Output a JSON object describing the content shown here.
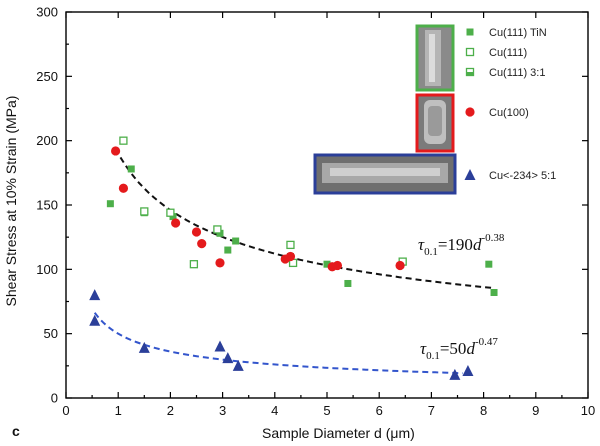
{
  "panel_label": "c",
  "chart_data": {
    "type": "scatter",
    "xlabel": "Sample Diameter d (μm)",
    "ylabel": "Shear Stress at 10% Strain (MPa)",
    "xlim": [
      0,
      10
    ],
    "ylim": [
      0,
      300
    ],
    "xticks": [
      0,
      1,
      2,
      3,
      4,
      5,
      6,
      7,
      8,
      9,
      10
    ],
    "yticks": [
      0,
      50,
      100,
      150,
      200,
      250,
      300
    ],
    "grid": false,
    "legend_position": "top-right",
    "series": [
      {
        "name": "Cu(111) TiN",
        "marker": "square-filled",
        "color": "#4daf4a",
        "points": [
          [
            0.85,
            151
          ],
          [
            1.25,
            178
          ],
          [
            1.5,
            144
          ],
          [
            2.05,
            141
          ],
          [
            2.95,
            128
          ],
          [
            3.1,
            115
          ],
          [
            3.25,
            122
          ],
          [
            4.3,
            110
          ],
          [
            5.0,
            104
          ],
          [
            5.4,
            89
          ],
          [
            8.1,
            104
          ],
          [
            8.2,
            82
          ]
        ]
      },
      {
        "name": "Cu(111)",
        "marker": "square-open",
        "color": "#4daf4a",
        "points": [
          [
            1.1,
            200
          ],
          [
            1.5,
            145
          ],
          [
            2.0,
            144
          ],
          [
            2.45,
            104
          ],
          [
            2.9,
            131
          ],
          [
            4.3,
            119
          ],
          [
            4.35,
            105
          ],
          [
            6.45,
            106
          ]
        ]
      },
      {
        "name": "Cu(111) 3:1",
        "marker": "square-half",
        "color": "#4daf4a",
        "points": []
      },
      {
        "name": "Cu(100)",
        "marker": "circle-filled",
        "color": "#e41a1c",
        "points": [
          [
            0.95,
            192
          ],
          [
            1.1,
            163
          ],
          [
            2.1,
            136
          ],
          [
            2.5,
            129
          ],
          [
            2.6,
            120
          ],
          [
            2.95,
            105
          ],
          [
            4.2,
            108
          ],
          [
            4.3,
            110
          ],
          [
            5.1,
            102
          ],
          [
            5.2,
            103
          ],
          [
            6.4,
            103
          ]
        ]
      },
      {
        "name": "Cu<-234> 5:1",
        "marker": "triangle-filled",
        "color": "#2b3f99",
        "points": [
          [
            0.55,
            80
          ],
          [
            0.55,
            60
          ],
          [
            1.5,
            39
          ],
          [
            2.95,
            40
          ],
          [
            3.1,
            31
          ],
          [
            3.3,
            25
          ],
          [
            7.45,
            18
          ],
          [
            7.7,
            21
          ]
        ]
      }
    ],
    "fits": [
      {
        "equation_base": "τ",
        "equation_sub": "0.1",
        "equation_rest": "=190",
        "equation_var": "d",
        "equation_exp": "-0.38",
        "coef": 190,
        "exponent": -0.38,
        "x_range": [
          0.95,
          8.2
        ],
        "color": "#111111"
      },
      {
        "equation_base": "τ",
        "equation_sub": "0.1",
        "equation_rest": "=50",
        "equation_var": "d",
        "equation_exp": "-0.47",
        "coef": 50,
        "exponent": -0.47,
        "x_range": [
          0.55,
          7.6
        ],
        "color": "#3355cc"
      }
    ]
  }
}
